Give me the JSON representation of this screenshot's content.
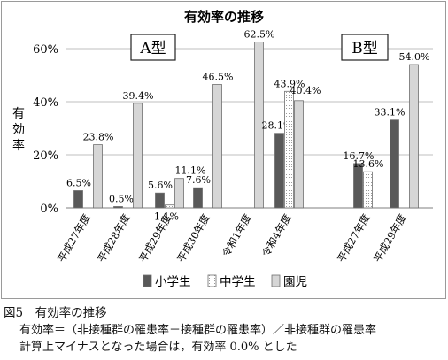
{
  "chart_data": {
    "type": "bar",
    "title": "有効率の推移",
    "ylabel": "有効率",
    "ylim": [
      0,
      60
    ],
    "yticks": [
      "0%",
      "20%",
      "40%",
      "60%"
    ],
    "grid": "horizontal",
    "legend_position": "bottom",
    "groups": [
      {
        "label": "A型",
        "categories": [
          "平成27年度",
          "平成28年度",
          "平成29年度",
          "平成30年度",
          "令和1年度",
          "令和4年度"
        ],
        "series": [
          {
            "name": "小学生",
            "values": [
              6.5,
              0.5,
              5.6,
              7.6,
              0.0,
              28.1
            ],
            "labels": [
              "6.5%",
              "0.5%",
              "5.6%",
              "7.6%",
              "",
              "28.1%"
            ]
          },
          {
            "name": "中学生",
            "values": [
              0.0,
              0.0,
              1.1,
              0.0,
              0.0,
              43.9
            ],
            "labels": [
              "",
              "",
              "1.1%",
              "",
              "",
              "43.9%"
            ]
          },
          {
            "name": "園児",
            "values": [
              23.8,
              39.4,
              11.1,
              46.5,
              62.5,
              40.4
            ],
            "labels": [
              "23.8%",
              "39.4%",
              "11.1%",
              "46.5%",
              "62.5%",
              "40.4%"
            ]
          }
        ]
      },
      {
        "label": "B型",
        "categories": [
          "平成27年度",
          "平成29年度"
        ],
        "series": [
          {
            "name": "小学生",
            "values": [
              16.7,
              33.1
            ],
            "labels": [
              "16.7%",
              "33.1%"
            ]
          },
          {
            "name": "中学生",
            "values": [
              13.6,
              0.0
            ],
            "labels": [
              "13.6%",
              ""
            ]
          },
          {
            "name": "園児",
            "values": [
              0.0,
              54.0
            ],
            "labels": [
              "",
              "54.0%"
            ]
          }
        ]
      }
    ],
    "legend": [
      "小学生",
      "中学生",
      "園児"
    ]
  },
  "colors": {
    "小学生": "#595959",
    "中学生": "#ffffff",
    "園児": "#d6d6d6",
    "grid": "#bfbfbf",
    "axis": "#7f7f7f"
  },
  "caption": {
    "figure_title": "図5　有効率の推移",
    "note_formula": "有効率＝（非接種群の罹患率－接種群の罹患率）／非接種群の罹患率",
    "note_condition": "計算上マイナスとなった場合は，有効率 0.0% とした"
  }
}
